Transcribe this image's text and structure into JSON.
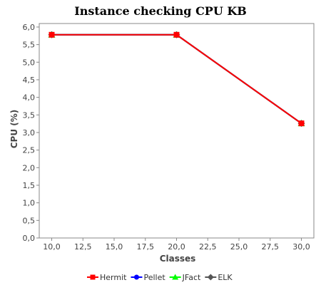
{
  "chart_data": {
    "type": "line",
    "title": "Instance checking CPU KB",
    "xlabel": "Classes",
    "ylabel": "CPU (%)",
    "xlim": [
      9,
      31
    ],
    "ylim": [
      0,
      6.1
    ],
    "x_ticks": [
      10,
      12.5,
      15,
      17.5,
      20,
      22.5,
      25,
      27.5,
      30
    ],
    "x_tick_labels": [
      "10,0",
      "12,5",
      "15,0",
      "17,5",
      "20,0",
      "22,5",
      "25,0",
      "27,5",
      "30,0"
    ],
    "y_ticks": [
      0,
      0.5,
      1,
      1.5,
      2,
      2.5,
      3,
      3.5,
      4,
      4.5,
      5,
      5.5,
      6
    ],
    "y_tick_labels": [
      "0,0",
      "0,5",
      "1,0",
      "1,5",
      "2,0",
      "2,5",
      "3,0",
      "3,5",
      "4,0",
      "4,5",
      "5,0",
      "5,5",
      "6,0"
    ],
    "grid": false,
    "legend_position": "bottom",
    "x": [
      10,
      20,
      30
    ],
    "series": [
      {
        "name": "Hermit",
        "values": [
          5.78,
          5.78,
          3.26
        ],
        "color": "#ff0000",
        "marker": "square"
      },
      {
        "name": "Pellet",
        "values": [
          5.78,
          5.78,
          3.26
        ],
        "color": "#0000ff",
        "marker": "circle"
      },
      {
        "name": "JFact",
        "values": [
          5.78,
          5.78,
          3.26
        ],
        "color": "#00ff00",
        "marker": "triangle"
      },
      {
        "name": "ELK",
        "values": [
          5.78,
          5.78,
          3.26
        ],
        "color": "#555555",
        "marker": "diamond"
      }
    ]
  }
}
